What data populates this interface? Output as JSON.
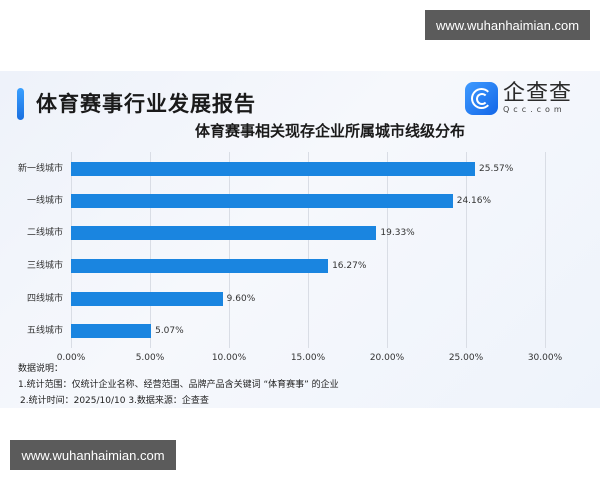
{
  "watermark": {
    "top": "www.wuhanhaimian.com",
    "bottom": "www.wuhanhaimian.com"
  },
  "header": {
    "title": "体育赛事行业发展报告",
    "logo_cn": "企查查",
    "logo_en": "Qcc.com"
  },
  "colors": {
    "bar": "#1a85e0",
    "accent": "#1a6fe0"
  },
  "chart_data": {
    "type": "bar",
    "orientation": "horizontal",
    "title": "体育赛事相关现存企业所属城市线级分布",
    "categories": [
      "新一线城市",
      "一线城市",
      "二线城市",
      "三线城市",
      "四线城市",
      "五线城市"
    ],
    "values": [
      25.57,
      24.16,
      19.33,
      16.27,
      9.6,
      5.07
    ],
    "value_labels": [
      "25.57%",
      "24.16%",
      "19.33%",
      "16.27%",
      "9.60%",
      "5.07%"
    ],
    "x_ticks": [
      "0.00%",
      "5.00%",
      "10.00%",
      "15.00%",
      "20.00%",
      "25.00%",
      "30.00%"
    ],
    "xlim": [
      0,
      30
    ],
    "xlabel": "",
    "ylabel": "",
    "grid": true,
    "legend": null
  },
  "notes": {
    "heading": "数据说明：",
    "line1": "1.统计范围：仅统计企业名称、经营范围、品牌产品含关键词 “体育赛事” 的企业",
    "line2": "2.统计时间：2025/10/10  3.数据来源：企查查"
  }
}
